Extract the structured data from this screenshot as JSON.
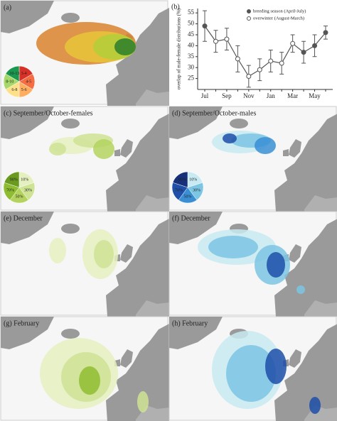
{
  "chart_data": {
    "type": "line",
    "panel_label": "(b)",
    "y_label": "overlap of male-female distributions (%)",
    "categories": [
      "Jul",
      null,
      "Sep",
      null,
      "Nov",
      null,
      "Jan",
      null,
      "Mar",
      null,
      "May",
      null
    ],
    "series": [
      {
        "name": "breeding season (April-July)",
        "color": "#555555",
        "values": [
          49,
          null,
          null,
          null,
          null,
          null,
          null,
          null,
          null,
          37,
          40,
          46
        ]
      },
      {
        "name": "overwinter (August-March)",
        "color": "#ffffff",
        "values": [
          null,
          42,
          43,
          34,
          26,
          29,
          33,
          32,
          41,
          null,
          null,
          null
        ]
      }
    ],
    "errors": [
      7,
      5,
      5,
      6,
      5,
      5,
      5,
      5,
      4,
      5,
      5,
      3
    ],
    "ylim": [
      20,
      57
    ],
    "yticks": [
      25,
      30,
      35,
      40,
      45,
      50,
      55
    ],
    "legend": "upper right"
  },
  "panels": [
    {
      "label": "(a)",
      "legend": [
        "3-4",
        "4-5",
        "5-6",
        "6-8",
        "8-10",
        "10-13"
      ]
    },
    {
      "label": "(c) September/October-females",
      "legend": [
        "10%",
        "30%",
        "50%",
        "70%",
        "90%"
      ]
    },
    {
      "label": "(d) September/October-males",
      "legend": [
        "10%",
        "30%",
        "50%",
        "70%",
        "90%"
      ]
    },
    {
      "label": "(e) December"
    },
    {
      "label": "(f) December"
    },
    {
      "label": "(g) February"
    },
    {
      "label": "(h) February"
    }
  ]
}
